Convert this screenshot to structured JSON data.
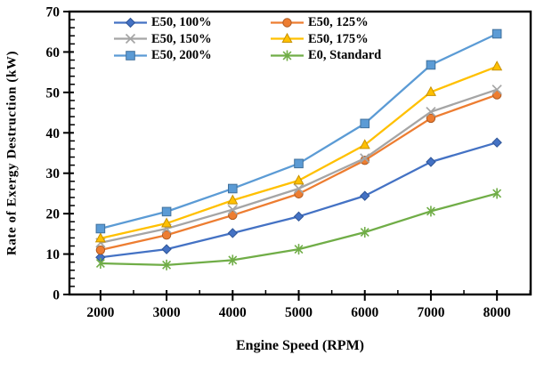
{
  "chart_data": {
    "type": "line",
    "title": "",
    "xlabel": "Engine Speed (RPM)",
    "ylabel": "Rate of Exergy Destruction (kW)",
    "x": [
      2000,
      3000,
      4000,
      5000,
      6000,
      7000,
      8000
    ],
    "xlim": [
      1530,
      8510
    ],
    "ylim": [
      0,
      70
    ],
    "y_major_step": 10,
    "y_minor_step": 2,
    "x_minor_ticks": [
      2500,
      3500,
      4500,
      5500,
      6500,
      7500,
      8500
    ],
    "grid": false,
    "legend_position": "inside-top, two columns",
    "series": [
      {
        "name": "E50, 100%",
        "marker": "diamond",
        "color": "#4472C4",
        "edge": "#2F5597",
        "values": [
          9.2,
          11.2,
          15.2,
          19.3,
          24.4,
          32.8,
          37.6
        ]
      },
      {
        "name": "E50, 125%",
        "marker": "circle",
        "color": "#ED7D31",
        "edge": "#AE5A21",
        "values": [
          11.0,
          14.7,
          19.6,
          24.9,
          33.2,
          43.6,
          49.4
        ]
      },
      {
        "name": "E50, 150%",
        "marker": "x",
        "color": "#A5A5A5",
        "edge": "#848484",
        "values": [
          12.8,
          16.3,
          21.0,
          26.2,
          33.7,
          45.2,
          50.7
        ]
      },
      {
        "name": "E50, 175%",
        "marker": "triangle",
        "color": "#FFC000",
        "edge": "#C79100",
        "values": [
          13.9,
          17.6,
          23.3,
          28.2,
          37.0,
          50.1,
          56.4
        ]
      },
      {
        "name": "E50, 200%",
        "marker": "square",
        "color": "#5B9BD5",
        "edge": "#41719C",
        "values": [
          16.3,
          20.5,
          26.2,
          32.4,
          42.3,
          56.8,
          64.5
        ]
      },
      {
        "name": "E0, Standard",
        "marker": "asterisk",
        "color": "#70AD47",
        "edge": "#70AD47",
        "values": [
          7.7,
          7.3,
          8.5,
          11.2,
          15.4,
          20.6,
          25.0
        ]
      }
    ],
    "legend_order_columns": [
      [
        0,
        2,
        4
      ],
      [
        1,
        3,
        5
      ]
    ]
  }
}
